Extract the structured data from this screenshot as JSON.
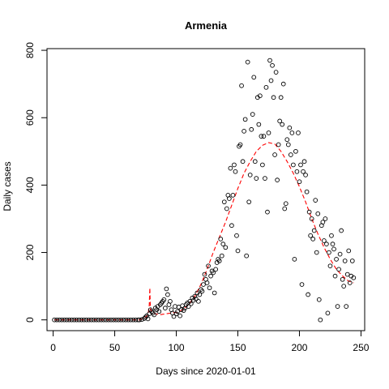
{
  "chart_data": {
    "type": "scatter",
    "title": "Armenia",
    "xlabel": "Days since 2020-01-01",
    "ylabel": "Daily cases",
    "xlim": [
      -5,
      253
    ],
    "ylim": [
      -32,
      805
    ],
    "xticks": [
      0,
      50,
      100,
      150,
      200,
      250
    ],
    "yticks": [
      0,
      200,
      400,
      600,
      800
    ],
    "grid": false,
    "legend": "none",
    "point_color": "#000000",
    "trend_color": "#ff0000",
    "series": [
      {
        "kind": "points",
        "points": [
          [
            1,
            0
          ],
          [
            3,
            0
          ],
          [
            5,
            0
          ],
          [
            7,
            0
          ],
          [
            9,
            0
          ],
          [
            11,
            0
          ],
          [
            13,
            0
          ],
          [
            15,
            0
          ],
          [
            17,
            0
          ],
          [
            19,
            0
          ],
          [
            21,
            0
          ],
          [
            23,
            0
          ],
          [
            25,
            0
          ],
          [
            27,
            0
          ],
          [
            29,
            0
          ],
          [
            31,
            0
          ],
          [
            33,
            0
          ],
          [
            35,
            0
          ],
          [
            37,
            0
          ],
          [
            39,
            0
          ],
          [
            41,
            0
          ],
          [
            43,
            0
          ],
          [
            45,
            0
          ],
          [
            47,
            0
          ],
          [
            49,
            0
          ],
          [
            51,
            0
          ],
          [
            53,
            0
          ],
          [
            55,
            0
          ],
          [
            57,
            0
          ],
          [
            59,
            0
          ],
          [
            61,
            0
          ],
          [
            63,
            0
          ],
          [
            65,
            0
          ],
          [
            67,
            0
          ],
          [
            69,
            0
          ],
          [
            70,
            0
          ],
          [
            72,
            1
          ],
          [
            74,
            4
          ],
          [
            75,
            8
          ],
          [
            76,
            12
          ],
          [
            77,
            3
          ],
          [
            78,
            18
          ],
          [
            79,
            30
          ],
          [
            80,
            25
          ],
          [
            81,
            20
          ],
          [
            82,
            15
          ],
          [
            83,
            35
          ],
          [
            84,
            30
          ],
          [
            85,
            40
          ],
          [
            86,
            25
          ],
          [
            87,
            45
          ],
          [
            88,
            50
          ],
          [
            89,
            55
          ],
          [
            90,
            60
          ],
          [
            91,
            35
          ],
          [
            92,
            92
          ],
          [
            93,
            75
          ],
          [
            94,
            45
          ],
          [
            95,
            55
          ],
          [
            96,
            30
          ],
          [
            97,
            20
          ],
          [
            98,
            10
          ],
          [
            99,
            40
          ],
          [
            100,
            18
          ],
          [
            101,
            25
          ],
          [
            102,
            38
          ],
          [
            103,
            12
          ],
          [
            104,
            30
          ],
          [
            105,
            42
          ],
          [
            106,
            28
          ],
          [
            107,
            35
          ],
          [
            108,
            45
          ],
          [
            109,
            50
          ],
          [
            110,
            40
          ],
          [
            111,
            55
          ],
          [
            112,
            48
          ],
          [
            113,
            65
          ],
          [
            114,
            58
          ],
          [
            115,
            70
          ],
          [
            116,
            62
          ],
          [
            117,
            80
          ],
          [
            118,
            55
          ],
          [
            119,
            75
          ],
          [
            120,
            90
          ],
          [
            121,
            85
          ],
          [
            122,
            105
          ],
          [
            123,
            135
          ],
          [
            124,
            120
          ],
          [
            125,
            110
          ],
          [
            126,
            160
          ],
          [
            127,
            95
          ],
          [
            128,
            130
          ],
          [
            129,
            145
          ],
          [
            130,
            140
          ],
          [
            131,
            80
          ],
          [
            132,
            150
          ],
          [
            133,
            170
          ],
          [
            134,
            180
          ],
          [
            135,
            175
          ],
          [
            136,
            240
          ],
          [
            137,
            190
          ],
          [
            138,
            225
          ],
          [
            139,
            350
          ],
          [
            140,
            215
          ],
          [
            141,
            330
          ],
          [
            142,
            370
          ],
          [
            143,
            360
          ],
          [
            144,
            450
          ],
          [
            145,
            280
          ],
          [
            146,
            370
          ],
          [
            147,
            460
          ],
          [
            148,
            440
          ],
          [
            149,
            250
          ],
          [
            150,
            205
          ],
          [
            151,
            515
          ],
          [
            152,
            520
          ],
          [
            153,
            695
          ],
          [
            154,
            470
          ],
          [
            155,
            560
          ],
          [
            156,
            595
          ],
          [
            157,
            190
          ],
          [
            158,
            765
          ],
          [
            159,
            350
          ],
          [
            160,
            430
          ],
          [
            161,
            565
          ],
          [
            162,
            610
          ],
          [
            163,
            720
          ],
          [
            164,
            470
          ],
          [
            165,
            420
          ],
          [
            166,
            660
          ],
          [
            167,
            580
          ],
          [
            168,
            665
          ],
          [
            169,
            545
          ],
          [
            170,
            460
          ],
          [
            171,
            545
          ],
          [
            172,
            420
          ],
          [
            173,
            690
          ],
          [
            174,
            320
          ],
          [
            175,
            555
          ],
          [
            176,
            770
          ],
          [
            177,
            710
          ],
          [
            178,
            755
          ],
          [
            179,
            660
          ],
          [
            180,
            490
          ],
          [
            181,
            735
          ],
          [
            182,
            415
          ],
          [
            183,
            520
          ],
          [
            184,
            590
          ],
          [
            185,
            660
          ],
          [
            186,
            580
          ],
          [
            187,
            700
          ],
          [
            188,
            330
          ],
          [
            189,
            345
          ],
          [
            190,
            535
          ],
          [
            191,
            520
          ],
          [
            192,
            570
          ],
          [
            193,
            490
          ],
          [
            194,
            555
          ],
          [
            195,
            460
          ],
          [
            196,
            180
          ],
          [
            197,
            500
          ],
          [
            198,
            440
          ],
          [
            199,
            555
          ],
          [
            200,
            410
          ],
          [
            201,
            460
          ],
          [
            202,
            105
          ],
          [
            203,
            440
          ],
          [
            204,
            470
          ],
          [
            205,
            430
          ],
          [
            206,
            380
          ],
          [
            207,
            75
          ],
          [
            208,
            320
          ],
          [
            209,
            250
          ],
          [
            210,
            300
          ],
          [
            211,
            240
          ],
          [
            212,
            265
          ],
          [
            213,
            355
          ],
          [
            214,
            200
          ],
          [
            215,
            315
          ],
          [
            216,
            60
          ],
          [
            217,
            0
          ],
          [
            218,
            280
          ],
          [
            219,
            290
          ],
          [
            220,
            235
          ],
          [
            221,
            300
          ],
          [
            222,
            225
          ],
          [
            223,
            20
          ],
          [
            224,
            200
          ],
          [
            225,
            160
          ],
          [
            226,
            250
          ],
          [
            227,
            225
          ],
          [
            228,
            210
          ],
          [
            229,
            130
          ],
          [
            230,
            180
          ],
          [
            231,
            40
          ],
          [
            232,
            150
          ],
          [
            233,
            195
          ],
          [
            234,
            265
          ],
          [
            235,
            120
          ],
          [
            236,
            100
          ],
          [
            237,
            175
          ],
          [
            238,
            40
          ],
          [
            239,
            135
          ],
          [
            240,
            205
          ],
          [
            241,
            110
          ],
          [
            242,
            130
          ],
          [
            243,
            175
          ],
          [
            244,
            125
          ]
        ]
      },
      {
        "kind": "dashed-line",
        "points": [
          [
            1,
            0
          ],
          [
            20,
            0
          ],
          [
            40,
            0
          ],
          [
            60,
            0
          ],
          [
            70,
            0
          ],
          [
            74,
            5
          ],
          [
            77,
            15
          ],
          [
            78,
            40
          ],
          [
            78.5,
            95
          ],
          [
            79,
            30
          ],
          [
            82,
            20
          ],
          [
            86,
            15
          ],
          [
            90,
            17
          ],
          [
            95,
            20
          ],
          [
            100,
            22
          ],
          [
            105,
            30
          ],
          [
            110,
            45
          ],
          [
            115,
            70
          ],
          [
            120,
            105
          ],
          [
            125,
            150
          ],
          [
            130,
            200
          ],
          [
            135,
            245
          ],
          [
            140,
            290
          ],
          [
            145,
            340
          ],
          [
            150,
            390
          ],
          [
            155,
            435
          ],
          [
            160,
            470
          ],
          [
            165,
            500
          ],
          [
            170,
            518
          ],
          [
            175,
            526
          ],
          [
            180,
            522
          ],
          [
            185,
            500
          ],
          [
            190,
            470
          ],
          [
            195,
            435
          ],
          [
            200,
            395
          ],
          [
            205,
            350
          ],
          [
            210,
            300
          ],
          [
            215,
            255
          ],
          [
            220,
            215
          ],
          [
            225,
            180
          ],
          [
            230,
            150
          ],
          [
            235,
            130
          ],
          [
            240,
            115
          ],
          [
            244,
            110
          ]
        ]
      }
    ]
  }
}
